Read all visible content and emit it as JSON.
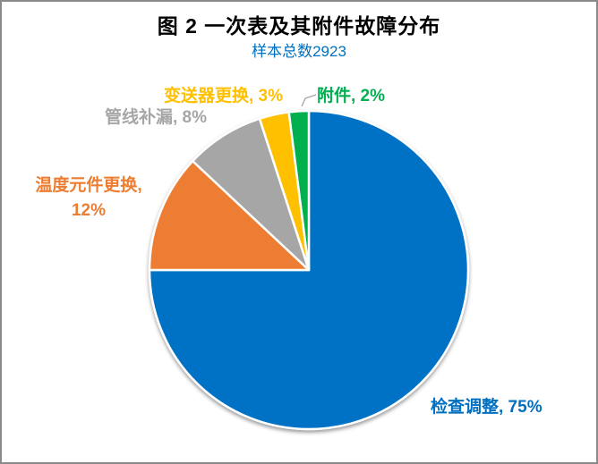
{
  "window": {
    "background": "#ffffff",
    "border_color": "#8a8a8a"
  },
  "chart_data": {
    "type": "pie",
    "title": "图 2 一次表及其附件故障分布",
    "subtitle": "样本总数2923",
    "total_samples": 2923,
    "categories": [
      "检查调整",
      "温度元件更换",
      "管线补漏",
      "变送器更换",
      "附件"
    ],
    "values": [
      75,
      12,
      8,
      3,
      2
    ],
    "unit": "%",
    "start_angle_deg": -90,
    "direction": "clockwise",
    "colors": [
      "#0072C6",
      "#ED7D31",
      "#A6A6A6",
      "#FFC000",
      "#00B050"
    ],
    "labels": [
      {
        "text": "检查调整, 75%",
        "color": "#0070C0"
      },
      {
        "text": "温度元件更换,\n12%",
        "color": "#ED7D31"
      },
      {
        "text": "管线补漏, 8%",
        "color": "#A6A6A6"
      },
      {
        "text": "变送器更换, 3%",
        "color": "#FFC000"
      },
      {
        "text": "附件, 2%",
        "color": "#00B050"
      }
    ],
    "title_color": "#000000",
    "subtitle_color": "#0070C0",
    "leader_line_color": "#A6A6A6",
    "legend_position": "none"
  }
}
